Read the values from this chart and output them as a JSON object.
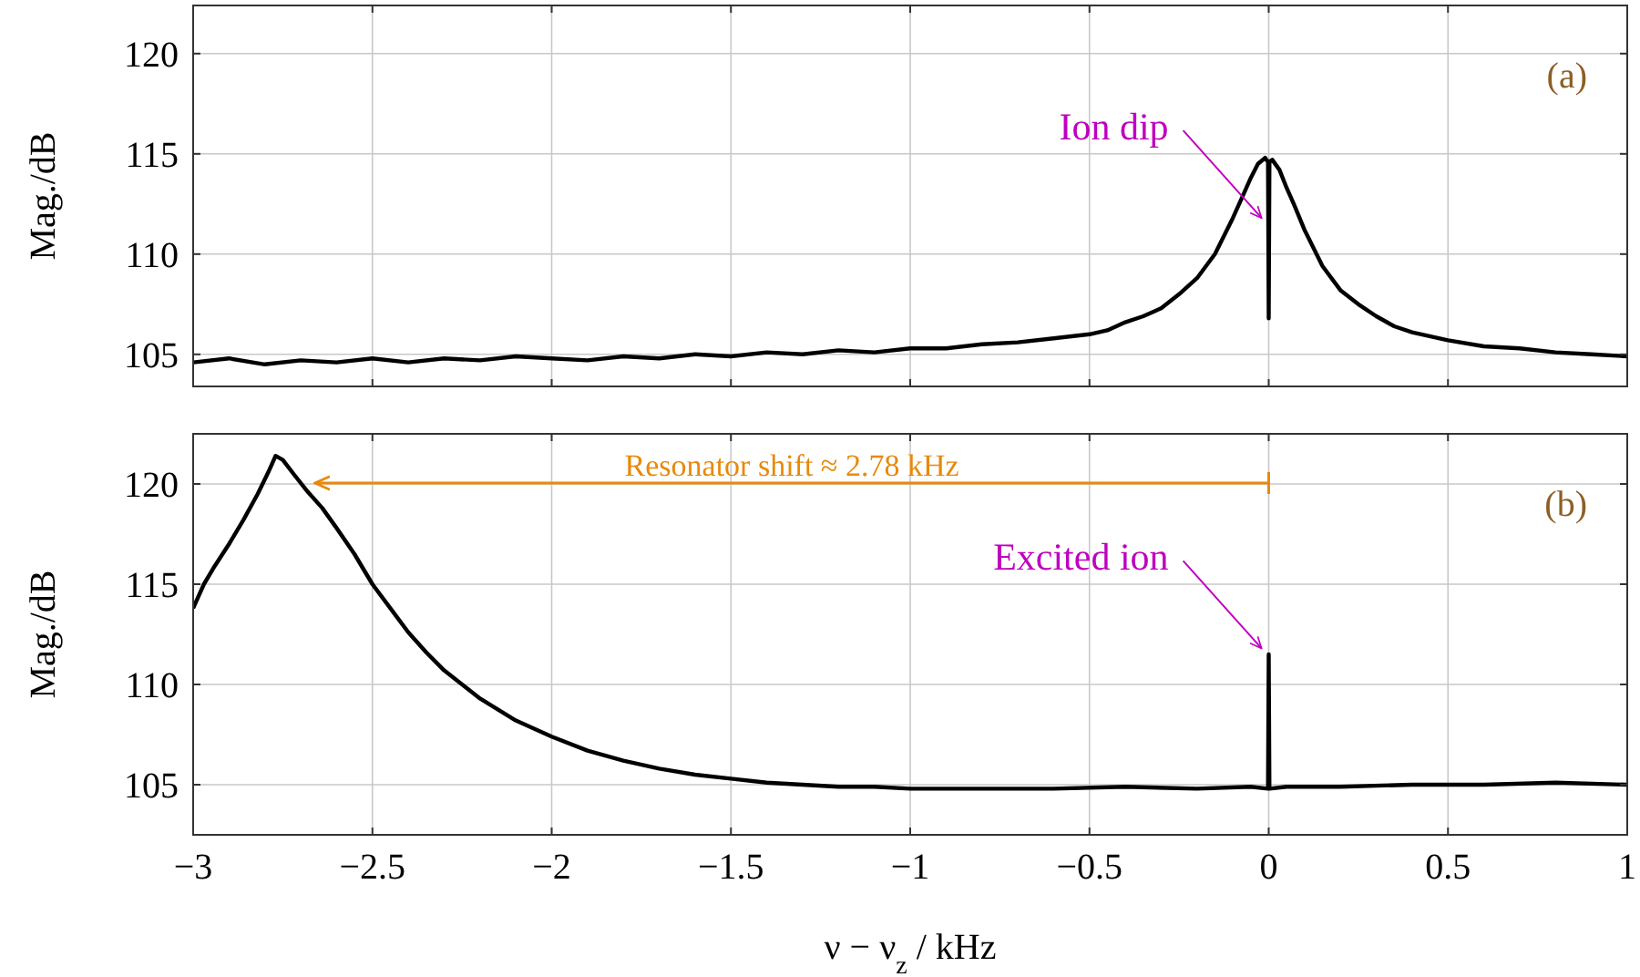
{
  "chart_data": [
    {
      "type": "line",
      "ylabel": "Mag./dB",
      "xlim": [
        -3,
        1
      ],
      "ylim": [
        103.4,
        122.4
      ],
      "xticks": [
        -3,
        -2.5,
        -2,
        -1.5,
        -1,
        -0.5,
        0,
        0.5,
        1
      ],
      "yticks": [
        105,
        110,
        115,
        120
      ],
      "grid": true,
      "tick_labels": "y",
      "marker": "none",
      "line_style": "solid",
      "annotations": [
        "(a)",
        {
          "text": "Ion dip",
          "x": -0.02,
          "y": 111.8
        }
      ],
      "series": [
        {
          "color": "#000000",
          "x": [
            -3,
            -2.9,
            -2.8,
            -2.7,
            -2.6,
            -2.5,
            -2.4,
            -2.3,
            -2.2,
            -2.1,
            -2,
            -1.9,
            -1.8,
            -1.7,
            -1.6,
            -1.5,
            -1.4,
            -1.3,
            -1.2,
            -1.1,
            -1,
            -0.9,
            -0.8,
            -0.7,
            -0.6,
            -0.5,
            -0.45,
            -0.4,
            -0.35,
            -0.3,
            -0.25,
            -0.2,
            -0.15,
            -0.1,
            -0.07,
            -0.05,
            -0.03,
            -0.01,
            -0.002,
            0,
            0.002,
            0.01,
            0.03,
            0.05,
            0.07,
            0.1,
            0.15,
            0.2,
            0.25,
            0.3,
            0.35,
            0.4,
            0.5,
            0.6,
            0.7,
            0.8,
            0.9,
            1
          ],
          "values": [
            104.6,
            104.8,
            104.5,
            104.7,
            104.6,
            104.8,
            104.6,
            104.8,
            104.7,
            104.9,
            104.8,
            104.7,
            104.9,
            104.8,
            105.0,
            104.9,
            105.1,
            105.0,
            105.2,
            105.1,
            105.3,
            105.3,
            105.5,
            105.6,
            105.8,
            106.0,
            106.2,
            106.6,
            106.9,
            107.3,
            108.0,
            108.8,
            110.0,
            111.8,
            113.0,
            113.8,
            114.5,
            114.8,
            114.6,
            106.8,
            114.6,
            114.7,
            114.2,
            113.3,
            112.5,
            111.2,
            109.4,
            108.2,
            107.5,
            106.9,
            106.4,
            106.1,
            105.7,
            105.4,
            105.3,
            105.1,
            105.0,
            104.9
          ]
        }
      ]
    },
    {
      "type": "line",
      "ylabel": "Mag./dB",
      "xlabel": "ν − ν$_{z}$ / kHz",
      "xlim": [
        -3,
        1
      ],
      "ylim": [
        102.5,
        122.5
      ],
      "xticks": [
        -3,
        -2.5,
        -2,
        -1.5,
        -1,
        -0.5,
        0,
        0.5,
        1
      ],
      "yticks": [
        105,
        110,
        115,
        120
      ],
      "grid": true,
      "marker": "none",
      "line_style": "solid",
      "annotations": [
        "(b)",
        "Resonator shift ≈ 2.78 kHz",
        {
          "text": "Excited ion",
          "x": -0.02,
          "y": 111.8
        }
      ],
      "series": [
        {
          "color": "#000000",
          "x": [
            -3,
            -2.97,
            -2.94,
            -2.9,
            -2.86,
            -2.82,
            -2.79,
            -2.77,
            -2.75,
            -2.72,
            -2.68,
            -2.64,
            -2.6,
            -2.55,
            -2.5,
            -2.45,
            -2.4,
            -2.35,
            -2.3,
            -2.25,
            -2.2,
            -2.1,
            -2,
            -1.9,
            -1.8,
            -1.7,
            -1.6,
            -1.5,
            -1.4,
            -1.3,
            -1.2,
            -1.1,
            -1,
            -0.8,
            -0.6,
            -0.4,
            -0.2,
            -0.05,
            -0.002,
            0,
            0.002,
            0.05,
            0.2,
            0.4,
            0.6,
            0.8,
            1
          ],
          "values": [
            113.8,
            115.0,
            115.9,
            117.0,
            118.2,
            119.5,
            120.6,
            121.4,
            121.2,
            120.5,
            119.6,
            118.8,
            117.8,
            116.5,
            115.0,
            113.8,
            112.6,
            111.6,
            110.7,
            110.0,
            109.3,
            108.2,
            107.4,
            106.7,
            106.2,
            105.8,
            105.5,
            105.3,
            105.1,
            105.0,
            104.9,
            104.9,
            104.8,
            104.8,
            104.8,
            104.9,
            104.8,
            104.9,
            104.8,
            111.5,
            104.8,
            104.9,
            104.9,
            105.0,
            105.0,
            105.1,
            105.0
          ]
        }
      ]
    }
  ]
}
